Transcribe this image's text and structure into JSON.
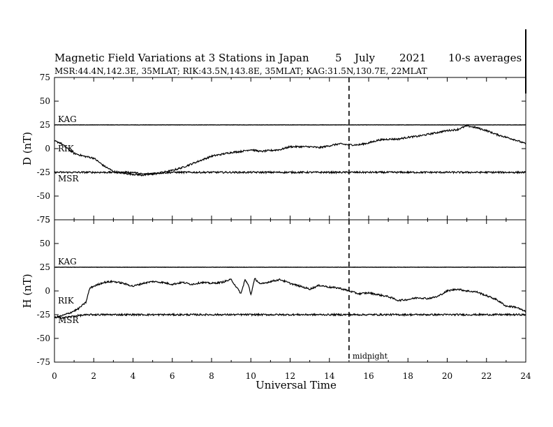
{
  "header": {
    "title": "Magnetic Field Variations at 3 Stations in Japan",
    "day": "5",
    "month": "July",
    "year": "2021",
    "averaging": "10-s averages",
    "stations_line": "MSR:44.4N,142.3E, 35MLAT;  RIK:43.5N,143.8E, 35MLAT;  KAG:31.5N,130.7E, 22MLAT"
  },
  "colors": {
    "line": "#000000",
    "background": "#ffffff"
  },
  "chart_data": [
    {
      "type": "line",
      "ylabel": "D (nT)",
      "xlabel": "",
      "xlim": [
        0,
        24
      ],
      "ylim": [
        -75,
        75
      ],
      "yticks": [
        "75",
        "50",
        "25",
        "0",
        "-25",
        "-50",
        "-75"
      ],
      "grid": false,
      "series": [
        {
          "name": "KAG",
          "baseline": 25,
          "x": [
            0,
            24
          ],
          "y": [
            0,
            0
          ]
        },
        {
          "name": "RIK",
          "baseline": 0,
          "x": [
            0,
            0.3,
            0.6,
            1.0,
            1.5,
            2.0,
            2.5,
            3.0,
            3.5,
            4.0,
            4.5,
            5.0,
            5.5,
            6.0,
            6.5,
            7.0,
            7.5,
            8.0,
            8.5,
            9.0,
            9.5,
            10.0,
            10.5,
            11.0,
            11.5,
            12.0,
            12.5,
            13.0,
            13.5,
            14.0,
            14.5,
            15.0,
            15.5,
            16.0,
            16.5,
            17.0,
            17.5,
            18.0,
            18.5,
            19.0,
            19.5,
            20.0,
            20.5,
            21.0,
            21.5,
            22.0,
            22.5,
            23.0,
            23.5,
            24.0
          ],
          "y": [
            8,
            6,
            1,
            -5,
            -8,
            -10,
            -18,
            -24,
            -26,
            -27,
            -28,
            -27,
            -25,
            -23,
            -20,
            -16,
            -12,
            -8,
            -6,
            -4,
            -3,
            -1,
            -3,
            -2,
            -1,
            2,
            2,
            2,
            1,
            3,
            5,
            4,
            4,
            6,
            9,
            10,
            10,
            12,
            13,
            15,
            17,
            19,
            20,
            24,
            22,
            19,
            15,
            12,
            9,
            5
          ]
        },
        {
          "name": "MSR",
          "baseline": -25,
          "x": [
            0,
            4,
            4.5,
            5,
            6,
            24
          ],
          "y": [
            0,
            0,
            -2,
            -1,
            0,
            0
          ]
        }
      ],
      "annotations": []
    },
    {
      "type": "line",
      "ylabel": "H (nT)",
      "xlabel": "Universal Time",
      "xlim": [
        0,
        24
      ],
      "ylim": [
        -75,
        75
      ],
      "xticks": [
        "0",
        "2",
        "4",
        "6",
        "8",
        "10",
        "12",
        "14",
        "16",
        "18",
        "20",
        "22",
        "24"
      ],
      "yticks": [
        "75",
        "50",
        "25",
        "0",
        "-25",
        "-50",
        "-75"
      ],
      "grid": false,
      "series": [
        {
          "name": "KAG",
          "baseline": 25,
          "x": [
            0,
            24
          ],
          "y": [
            0,
            0
          ]
        },
        {
          "name": "RIK",
          "baseline": 0,
          "x": [
            0,
            0.4,
            0.8,
            1.2,
            1.6,
            1.8,
            2.0,
            2.5,
            3.0,
            3.5,
            4.0,
            4.5,
            5.0,
            5.5,
            6.0,
            6.5,
            7.0,
            7.5,
            8.0,
            8.5,
            9.0,
            9.3,
            9.5,
            9.7,
            9.9,
            10.0,
            10.2,
            10.5,
            11.0,
            11.5,
            12.0,
            12.5,
            13.0,
            13.5,
            14.0,
            14.5,
            15.0,
            15.5,
            16.0,
            16.5,
            17.0,
            17.5,
            18.0,
            18.5,
            19.0,
            19.5,
            20.0,
            20.5,
            21.0,
            21.5,
            22.0,
            22.5,
            23.0,
            23.5,
            24.0
          ],
          "y": [
            -28,
            -26,
            -23,
            -19,
            -12,
            3,
            5,
            9,
            10,
            8,
            5,
            8,
            10,
            9,
            7,
            9,
            7,
            9,
            8,
            9,
            12,
            3,
            -3,
            12,
            5,
            -4,
            13,
            7,
            10,
            12,
            8,
            5,
            2,
            6,
            4,
            3,
            0,
            -3,
            -2,
            -4,
            -6,
            -10,
            -9,
            -7,
            -8,
            -6,
            0,
            2,
            0,
            -1,
            -5,
            -9,
            -16,
            -17,
            -22
          ]
        },
        {
          "name": "MSR",
          "baseline": -25,
          "x": [
            0,
            0.5,
            1.2,
            1.8,
            24
          ],
          "y": [
            -3,
            -3,
            -1,
            0,
            0
          ]
        }
      ],
      "annotations": [
        {
          "label": "midnight",
          "x": 15
        }
      ]
    }
  ]
}
